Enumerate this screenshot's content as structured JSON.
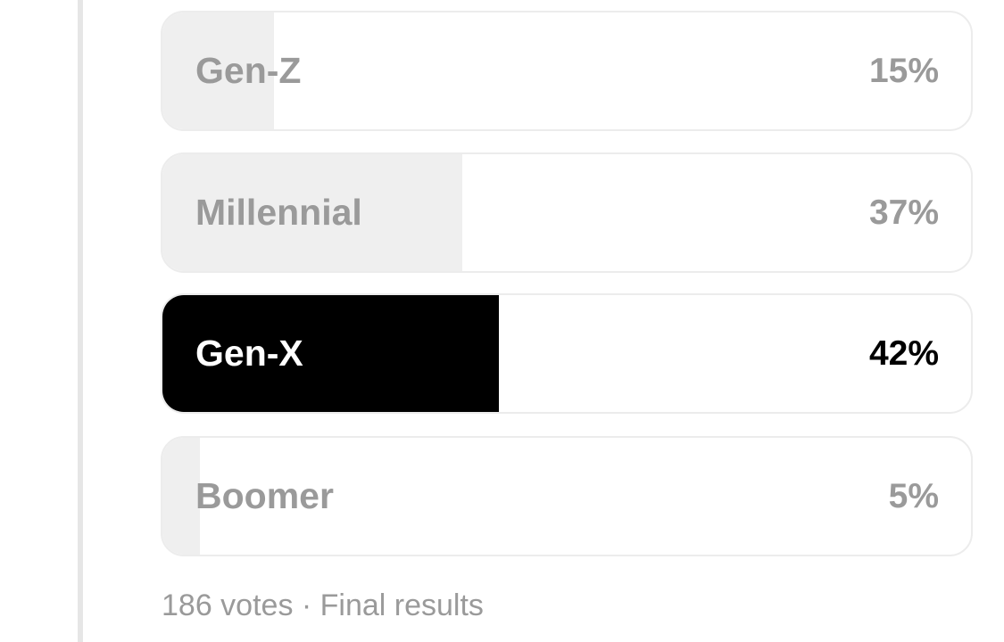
{
  "poll": {
    "options": [
      {
        "label": "Gen-Z",
        "percent_text": "15%",
        "percent": 15,
        "selected": false
      },
      {
        "label": "Millennial",
        "percent_text": "37%",
        "percent": 37,
        "selected": false
      },
      {
        "label": "Gen-X",
        "percent_text": "42%",
        "percent": 42,
        "selected": true
      },
      {
        "label": "Boomer",
        "percent_text": "5%",
        "percent": 5,
        "selected": false
      }
    ],
    "footer": "186 votes · Final results"
  },
  "colors": {
    "selected_fill": "#000000",
    "unselected_fill": "#efefef",
    "muted_text": "#9a9a9a"
  }
}
